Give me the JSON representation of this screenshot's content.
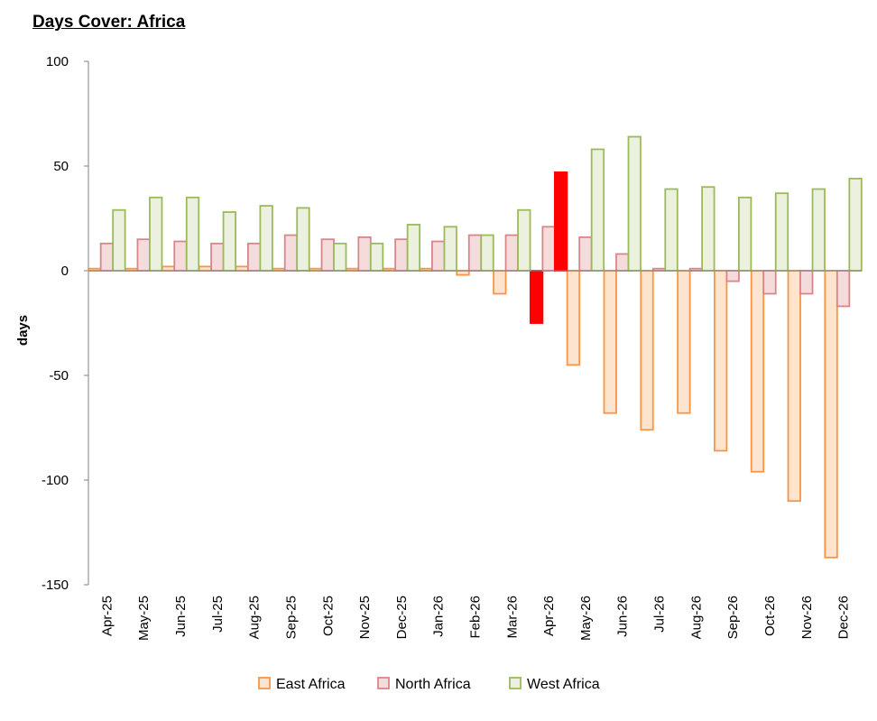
{
  "chart_data": {
    "type": "bar",
    "title": "Days Cover: Africa",
    "xlabel": "",
    "ylabel": "days",
    "ylim": [
      -150,
      100
    ],
    "yticks": [
      100,
      50,
      0,
      -50,
      -100,
      -150
    ],
    "legend_position": "bottom",
    "categories": [
      "Apr-25",
      "May-25",
      "Jun-25",
      "Jul-25",
      "Aug-25",
      "Sep-25",
      "Oct-25",
      "Nov-25",
      "Dec-25",
      "Jan-26",
      "Feb-26",
      "Mar-26",
      "Apr-26",
      "May-26",
      "Jun-26",
      "Jul-26",
      "Aug-26",
      "Sep-26",
      "Oct-26",
      "Nov-26",
      "Dec-26"
    ],
    "highlight_category": "Apr-26",
    "highlight_color": "#ff0000",
    "series": [
      {
        "name": "East Africa",
        "stroke": "#f79646",
        "fill": "#fde4cf",
        "values": [
          1,
          1,
          2,
          2,
          2,
          1,
          1,
          1,
          1,
          1,
          -2,
          -11,
          -25,
          -45,
          -68,
          -76,
          -68,
          -86,
          -96,
          -110,
          -137
        ]
      },
      {
        "name": "North Africa",
        "stroke": "#d9868a",
        "fill": "#f4dcdd",
        "values": [
          13,
          15,
          14,
          13,
          13,
          17,
          15,
          16,
          15,
          14,
          17,
          17,
          21,
          16,
          8,
          1,
          1,
          -5,
          -11,
          -11,
          -17
        ]
      },
      {
        "name": "West Africa",
        "stroke": "#9bbb59",
        "fill": "#ebf1de",
        "values": [
          29,
          35,
          35,
          28,
          31,
          30,
          13,
          13,
          22,
          21,
          17,
          29,
          47,
          58,
          64,
          39,
          40,
          35,
          37,
          39,
          44
        ]
      }
    ]
  }
}
